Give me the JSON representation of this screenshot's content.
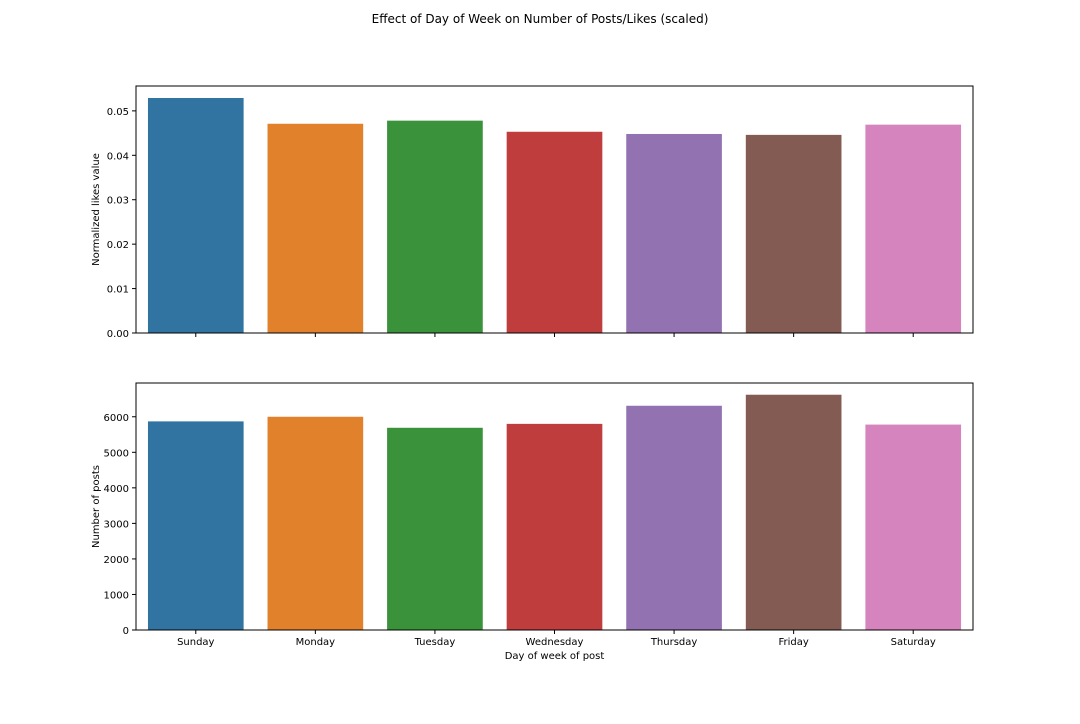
{
  "figure": {
    "suptitle": "Effect of Day of Week on Number of Posts/Likes (scaled)"
  },
  "colors": {
    "bars": [
      "#3274a1",
      "#e1812c",
      "#3a923a",
      "#c03d3e",
      "#9372b2",
      "#845b53",
      "#d684bd"
    ],
    "axis": "#000000"
  },
  "chart_data": [
    {
      "type": "bar",
      "title": "",
      "categories": [
        "Sunday",
        "Monday",
        "Tuesday",
        "Wednesday",
        "Thursday",
        "Friday",
        "Saturday"
      ],
      "values": [
        0.0529,
        0.0471,
        0.0478,
        0.0453,
        0.0448,
        0.0446,
        0.0469
      ],
      "xlabel": "",
      "ylabel": "Normalized likes value",
      "ylim": [
        0,
        0.0556
      ],
      "yticks": [
        0.0,
        0.01,
        0.02,
        0.03,
        0.04,
        0.05
      ],
      "ytick_labels": [
        "0.00",
        "0.01",
        "0.02",
        "0.03",
        "0.04",
        "0.05"
      ],
      "show_category_labels": false,
      "grid": false
    },
    {
      "type": "bar",
      "title": "",
      "categories": [
        "Sunday",
        "Monday",
        "Tuesday",
        "Wednesday",
        "Thursday",
        "Friday",
        "Saturday"
      ],
      "values": [
        5870,
        6000,
        5690,
        5800,
        6310,
        6620,
        5780
      ],
      "xlabel": "Day of week of post",
      "ylabel": "Number of posts",
      "ylim": [
        0,
        6950
      ],
      "yticks": [
        0,
        1000,
        2000,
        3000,
        4000,
        5000,
        6000
      ],
      "ytick_labels": [
        "0",
        "1000",
        "2000",
        "3000",
        "4000",
        "5000",
        "6000"
      ],
      "show_category_labels": true,
      "grid": false
    }
  ]
}
